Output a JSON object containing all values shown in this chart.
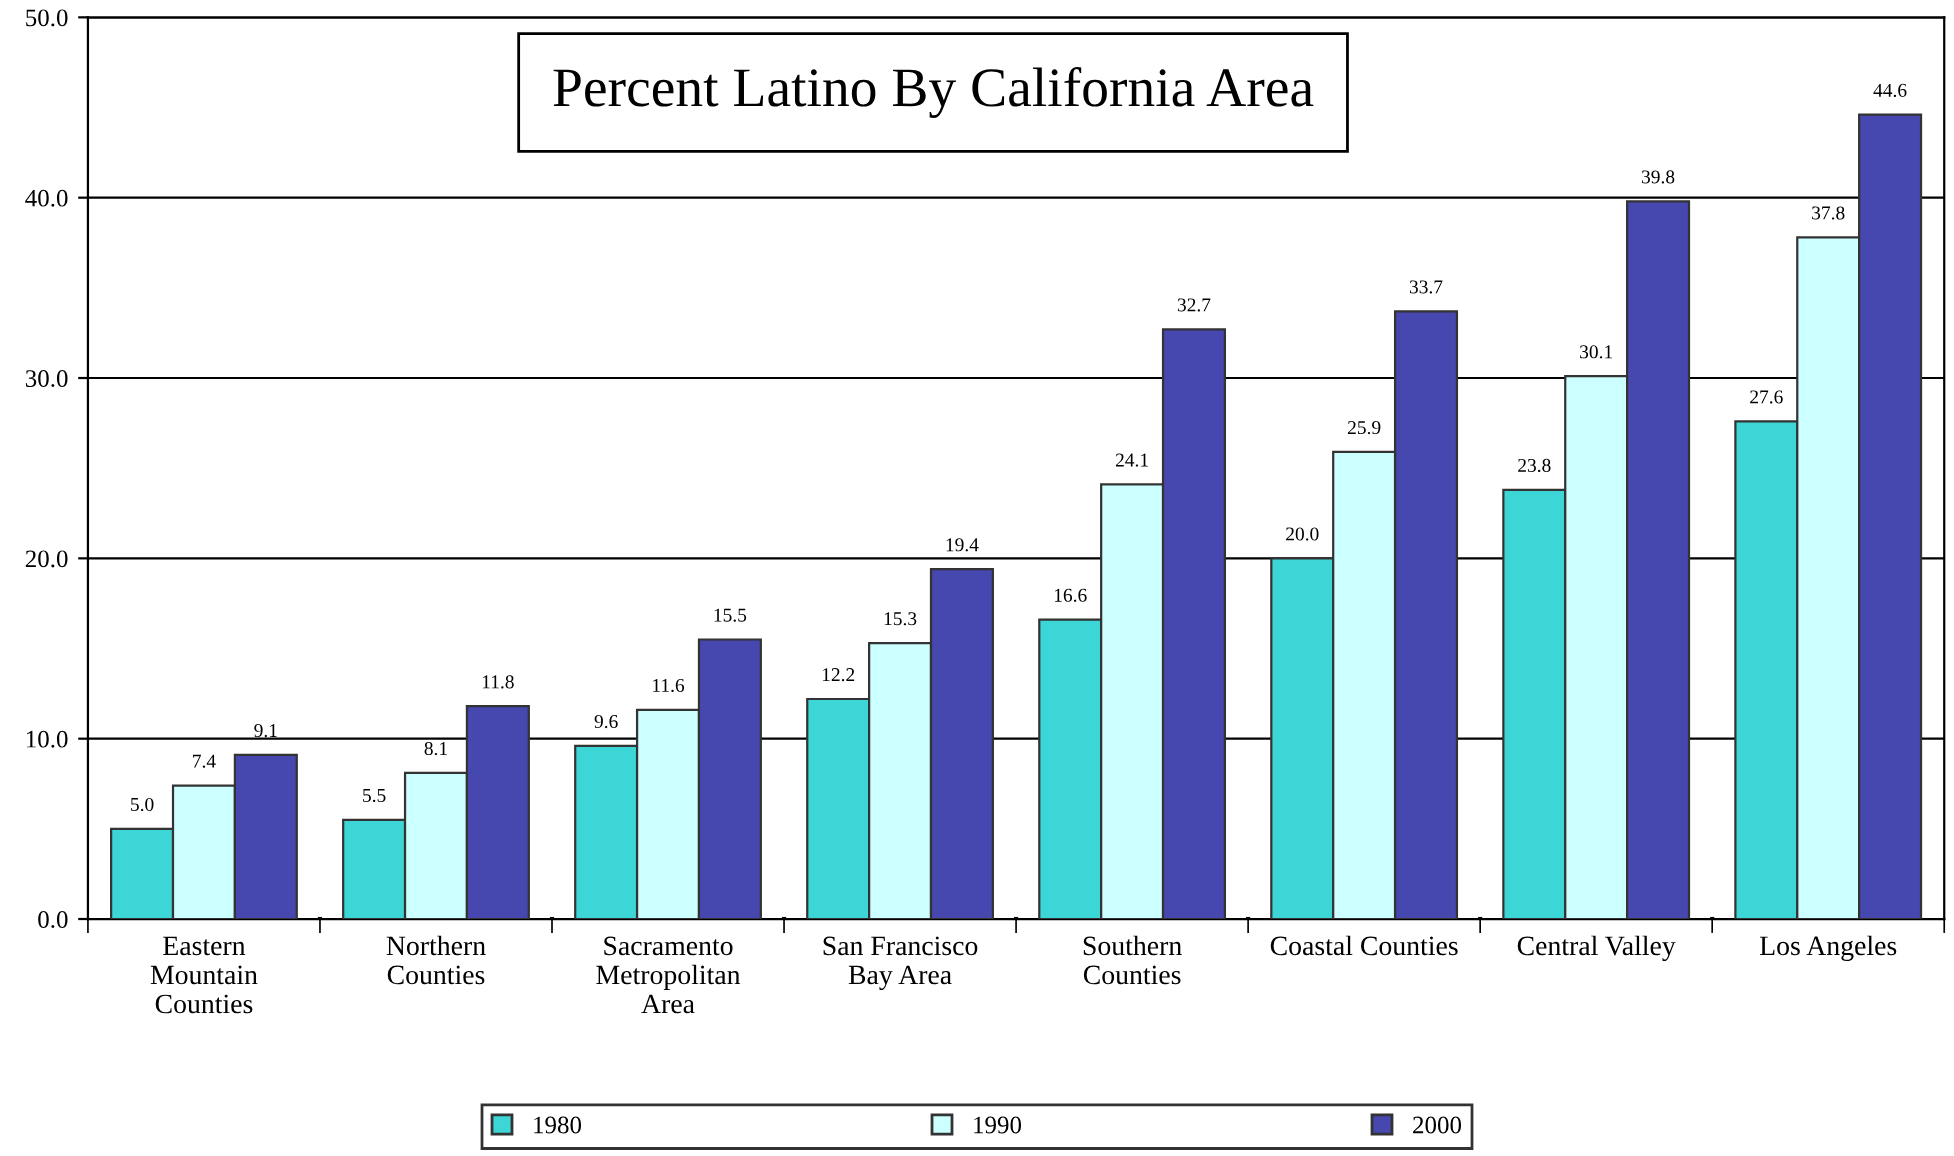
{
  "chart_data": {
    "type": "bar",
    "title": "Percent Latino By California Area",
    "categories": [
      "Eastern\nMountain\nCounties",
      "Northern\nCounties",
      "Sacramento\nMetropolitan\nArea",
      "San Francisco\nBay Area",
      "Southern\nCounties",
      "Coastal Counties",
      "Central Valley",
      "Los Angeles"
    ],
    "series": [
      {
        "name": "1980",
        "color": "#3dd6d6",
        "values": [
          5.0,
          5.5,
          9.6,
          12.2,
          16.6,
          20.0,
          23.8,
          27.6
        ],
        "value_labels": [
          "5.0",
          "5.5",
          "9.6",
          "12.2",
          "16.6",
          "20.0",
          "23.8",
          "27.6"
        ]
      },
      {
        "name": "1990",
        "color": "#ccffff",
        "values": [
          7.4,
          8.1,
          11.6,
          15.3,
          24.1,
          25.9,
          30.1,
          37.8
        ],
        "value_labels": [
          "7.4",
          "8.1",
          "11.6",
          "15.3",
          "24.1",
          "25.9",
          "30.1",
          "37.8"
        ]
      },
      {
        "name": "2000",
        "color": "#4747b0",
        "values": [
          9.1,
          11.8,
          15.5,
          19.4,
          32.7,
          33.7,
          39.8,
          44.6
        ],
        "value_labels": [
          "9.1",
          "11.8",
          "15.5",
          "19.4",
          "32.7",
          "33.7",
          "39.8",
          "44.6"
        ]
      }
    ],
    "ylim": [
      0,
      50
    ],
    "yticks": [
      {
        "value": 0,
        "label": "0.0"
      },
      {
        "value": 10,
        "label": "10.0"
      },
      {
        "value": 20,
        "label": "20.0"
      },
      {
        "value": 30,
        "label": "30.0"
      },
      {
        "value": 40,
        "label": "40.0"
      },
      {
        "value": 50,
        "label": "50.0"
      }
    ],
    "grid": "y",
    "legend": "bottom"
  }
}
